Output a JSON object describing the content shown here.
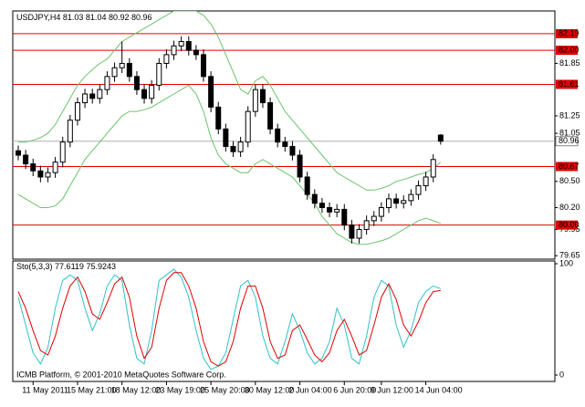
{
  "chart_data": {
    "type": "candlestick",
    "header": "USDJPY,H4",
    "indicator": "Sto(5,3,3)",
    "watermark": "ICMB Platform, © 2001-2010 MetaQuotes Software Corp.",
    "categories": [
      null,
      null,
      "11 May 2011",
      null,
      null,
      null,
      null,
      null,
      "15 May 21:00",
      null,
      null,
      null,
      null,
      null,
      "18 May 12:00",
      null,
      null,
      null,
      null,
      null,
      "23 May 19:00",
      null,
      null,
      null,
      null,
      null,
      "25 May 20:00",
      null,
      null,
      null,
      null,
      null,
      "30 May 12:00",
      null,
      null,
      null,
      null,
      null,
      "2 Jun 04:00",
      null,
      null,
      null,
      null,
      null,
      "6 Jun 20:00",
      null,
      null,
      null,
      null,
      "9 Jun 12:00",
      null,
      null,
      null,
      null,
      null,
      "14 Jun 04:00",
      null,
      null
    ],
    "open": [
      80.85,
      80.8,
      80.7,
      80.62,
      80.55,
      80.6,
      80.72,
      80.95,
      81.2,
      81.4,
      81.5,
      81.45,
      81.55,
      81.7,
      81.8,
      81.85,
      81.7,
      81.55,
      81.45,
      81.6,
      81.85,
      81.95,
      82.05,
      82.1,
      82.0,
      81.95,
      81.7,
      81.35,
      81.1,
      80.9,
      80.84,
      80.95,
      81.3,
      81.55,
      81.4,
      81.1,
      80.95,
      80.9,
      80.8,
      80.55,
      80.35,
      80.25,
      80.2,
      80.15,
      80.18,
      80.0,
      79.85,
      79.95,
      80.05,
      80.1,
      80.2,
      80.3,
      80.25,
      80.28,
      80.35,
      80.45,
      80.55,
      81.03
    ],
    "high": [
      80.91,
      80.86,
      80.76,
      80.68,
      80.66,
      80.78,
      81.01,
      81.26,
      81.46,
      81.56,
      81.56,
      81.61,
      81.76,
      81.86,
      82.1,
      81.91,
      81.76,
      81.61,
      81.66,
      81.91,
      82.01,
      82.11,
      82.16,
      82.16,
      82.06,
      82.01,
      81.76,
      81.41,
      81.16,
      80.96,
      81.01,
      81.36,
      81.61,
      81.61,
      81.46,
      81.16,
      81.01,
      80.96,
      80.86,
      80.61,
      80.41,
      80.31,
      80.26,
      80.24,
      80.24,
      80.06,
      80.01,
      80.11,
      80.16,
      80.26,
      80.36,
      80.36,
      80.34,
      80.41,
      80.51,
      80.61,
      80.81,
      81.04
    ],
    "low": [
      80.74,
      80.64,
      80.56,
      80.49,
      80.49,
      80.54,
      80.66,
      80.89,
      81.14,
      81.34,
      81.39,
      81.39,
      81.49,
      81.64,
      81.74,
      81.64,
      81.49,
      81.39,
      81.39,
      81.54,
      81.79,
      81.89,
      81.99,
      81.94,
      81.89,
      81.64,
      81.29,
      81.04,
      80.84,
      80.78,
      80.78,
      80.89,
      81.24,
      81.34,
      81.04,
      80.89,
      80.84,
      80.74,
      80.49,
      80.29,
      80.19,
      80.14,
      80.09,
      80.09,
      79.94,
      79.79,
      79.79,
      79.89,
      79.99,
      80.04,
      80.14,
      80.19,
      80.19,
      80.22,
      80.29,
      80.39,
      80.49,
      80.92
    ],
    "close": [
      80.8,
      80.7,
      80.62,
      80.55,
      80.6,
      80.72,
      80.95,
      81.2,
      81.4,
      81.5,
      81.45,
      81.55,
      81.7,
      81.8,
      81.85,
      81.7,
      81.55,
      81.45,
      81.6,
      81.85,
      81.95,
      82.05,
      82.1,
      82.0,
      81.95,
      81.7,
      81.35,
      81.1,
      80.9,
      80.84,
      80.95,
      81.3,
      81.55,
      81.4,
      81.1,
      80.95,
      80.9,
      80.8,
      80.55,
      80.35,
      80.25,
      80.2,
      80.15,
      80.18,
      80.0,
      79.85,
      79.95,
      80.05,
      80.1,
      80.2,
      80.3,
      80.25,
      80.28,
      80.35,
      80.45,
      80.55,
      80.75,
      80.96
    ],
    "candle_color": "#000000",
    "bands": {
      "color": "#6cc36c",
      "upper": [
        80.95,
        80.95,
        80.97,
        81.0,
        81.05,
        81.15,
        81.3,
        81.45,
        81.6,
        81.7,
        81.78,
        81.85,
        81.9,
        82.0,
        82.1,
        82.15,
        82.2,
        82.25,
        82.3,
        82.35,
        82.4,
        82.45,
        82.45,
        82.45,
        82.45,
        82.4,
        82.3,
        82.15,
        81.95,
        81.75,
        81.55,
        81.5,
        81.65,
        81.7,
        81.6,
        81.45,
        81.3,
        81.2,
        81.1,
        81.0,
        80.9,
        80.8,
        80.7,
        80.6,
        80.55,
        80.5,
        80.45,
        80.4,
        80.4,
        80.42,
        80.45,
        80.5,
        80.52,
        80.55,
        80.58,
        80.6,
        80.65,
        80.72
      ],
      "lower": [
        80.35,
        80.3,
        80.25,
        80.2,
        80.2,
        80.22,
        80.3,
        80.45,
        80.6,
        80.75,
        80.85,
        80.95,
        81.05,
        81.15,
        81.25,
        81.3,
        81.3,
        81.32,
        81.35,
        81.4,
        81.45,
        81.5,
        81.55,
        81.6,
        81.5,
        81.3,
        81.0,
        80.8,
        80.7,
        80.65,
        80.6,
        80.6,
        80.7,
        80.75,
        80.7,
        80.65,
        80.6,
        80.55,
        80.45,
        80.35,
        80.25,
        80.1,
        80.0,
        79.9,
        79.85,
        79.8,
        79.78,
        79.78,
        79.8,
        79.82,
        79.85,
        79.9,
        79.95,
        80.0,
        80.05,
        80.08,
        80.05,
        80.02
      ]
    },
    "ylim": [
      79.61,
      82.45
    ],
    "yticks": [
      81.85,
      81.25,
      81.05,
      {
        "value": 80.5,
        "label": "80.50"
      },
      {
        "value": 80.2,
        "label": "80.20"
      },
      79.95,
      79.65
    ],
    "level_color": "#e00000",
    "levels": [
      82.19,
      {
        "value": 82.0,
        "label": "82.00"
      },
      81.61,
      80.67,
      {
        "value": 80.0,
        "label": "80.00"
      }
    ],
    "stochastic": {
      "ylim": [
        0,
        100
      ],
      "yticks": [
        100,
        0
      ],
      "main_color": "#30c0c8",
      "signal_color": "#e00000",
      "main": [
        70,
        45,
        20,
        10,
        25,
        60,
        85,
        90,
        85,
        60,
        40,
        55,
        80,
        90,
        85,
        45,
        15,
        10,
        40,
        85,
        90,
        95,
        88,
        70,
        40,
        15,
        5,
        8,
        20,
        50,
        80,
        85,
        70,
        35,
        15,
        10,
        30,
        55,
        40,
        20,
        10,
        15,
        30,
        60,
        45,
        15,
        10,
        35,
        70,
        85,
        80,
        45,
        25,
        40,
        65,
        75,
        80,
        77.6119
      ],
      "signal": [
        75,
        60,
        40,
        22,
        18,
        35,
        60,
        80,
        88,
        75,
        55,
        50,
        65,
        82,
        88,
        70,
        35,
        15,
        25,
        60,
        85,
        92,
        92,
        80,
        60,
        30,
        12,
        8,
        12,
        30,
        60,
        80,
        80,
        60,
        30,
        15,
        18,
        40,
        45,
        32,
        18,
        12,
        20,
        40,
        50,
        35,
        18,
        22,
        45,
        70,
        82,
        68,
        45,
        35,
        48,
        65,
        75,
        75.9243
      ]
    }
  }
}
